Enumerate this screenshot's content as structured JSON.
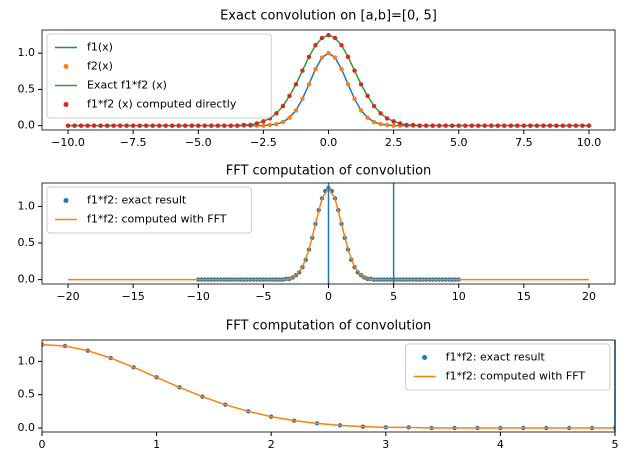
{
  "chart_data": [
    {
      "type": "line",
      "title": "Exact convolution on [a,b]=[0, 5]",
      "legend": "upper left",
      "x": [
        -10,
        -9.75,
        -9.5,
        -9.25,
        -9,
        -8.75,
        -8.5,
        -8.25,
        -8,
        -7.75,
        -7.5,
        -7.25,
        -7,
        -6.75,
        -6.5,
        -6.25,
        -6,
        -5.75,
        -5.5,
        -5.25,
        -5,
        -4.75,
        -4.5,
        -4.25,
        -4,
        -3.75,
        -3.5,
        -3.25,
        -3,
        -2.75,
        -2.5,
        -2.25,
        -2,
        -1.75,
        -1.5,
        -1.25,
        -1,
        -0.75,
        -0.5,
        -0.25,
        0,
        0.25,
        0.5,
        0.75,
        1,
        1.25,
        1.5,
        1.75,
        2,
        2.25,
        2.5,
        2.75,
        3,
        3.25,
        3.5,
        3.75,
        4,
        4.25,
        4.5,
        4.75,
        5,
        5.25,
        5.5,
        5.75,
        6,
        6.25,
        6.5,
        6.75,
        7,
        7.25,
        7.5,
        7.75,
        8,
        8.25,
        8.5,
        8.75,
        9,
        9.25,
        9.5,
        9.75,
        10
      ],
      "series": [
        {
          "name": "f1(x)",
          "color": "#1f77b4",
          "style": "line",
          "values": [
            0,
            0,
            0,
            0,
            0,
            0,
            0,
            0,
            0,
            0,
            0,
            0,
            0,
            0,
            0,
            0,
            0,
            0,
            0,
            0,
            0,
            0,
            0,
            0,
            0,
            0,
            0,
            0,
            0,
            0,
            0,
            0.01,
            0.02,
            0.05,
            0.11,
            0.21,
            0.37,
            0.57,
            0.78,
            0.94,
            1,
            0.94,
            0.78,
            0.57,
            0.37,
            0.21,
            0.11,
            0.05,
            0.02,
            0.01,
            0,
            0,
            0,
            0,
            0,
            0,
            0,
            0,
            0,
            0,
            0,
            0,
            0,
            0,
            0,
            0,
            0,
            0,
            0,
            0,
            0,
            0,
            0,
            0,
            0,
            0,
            0,
            0,
            0,
            0,
            0
          ]
        },
        {
          "name": "f2(x)",
          "color": "#ff7f0e",
          "style": "dots",
          "values": [
            0,
            0,
            0,
            0,
            0,
            0,
            0,
            0,
            0,
            0,
            0,
            0,
            0,
            0,
            0,
            0,
            0,
            0,
            0,
            0,
            0,
            0,
            0,
            0,
            0,
            0,
            0,
            0,
            0,
            0,
            0,
            0.01,
            0.02,
            0.05,
            0.11,
            0.21,
            0.37,
            0.57,
            0.78,
            0.94,
            1,
            0.94,
            0.78,
            0.57,
            0.37,
            0.21,
            0.11,
            0.05,
            0.02,
            0.01,
            0,
            0,
            0,
            0,
            0,
            0,
            0,
            0,
            0,
            0,
            0,
            0,
            0,
            0,
            0,
            0,
            0,
            0,
            0,
            0,
            0,
            0,
            0,
            0,
            0,
            0,
            0,
            0,
            0,
            0,
            0
          ]
        },
        {
          "name": "Exact f1*f2 (x)",
          "color": "#2ca02c",
          "style": "line",
          "values": [
            0,
            0,
            0,
            0,
            0,
            0,
            0,
            0,
            0,
            0,
            0,
            0,
            0,
            0,
            0,
            0,
            0,
            0,
            0,
            0,
            0,
            0,
            0,
            0,
            0,
            0,
            0,
            0.01,
            0.01,
            0.03,
            0.06,
            0.1,
            0.17,
            0.27,
            0.41,
            0.57,
            0.76,
            0.95,
            1.11,
            1.21,
            1.25,
            1.21,
            1.11,
            0.95,
            0.76,
            0.57,
            0.41,
            0.27,
            0.17,
            0.1,
            0.06,
            0.03,
            0.01,
            0.01,
            0,
            0,
            0,
            0,
            0,
            0,
            0,
            0,
            0,
            0,
            0,
            0,
            0,
            0,
            0,
            0,
            0,
            0,
            0,
            0,
            0,
            0,
            0,
            0,
            0,
            0,
            0
          ]
        },
        {
          "name": "f1*f2 (x) computed directly",
          "color": "#d62728",
          "style": "dots",
          "values": [
            0,
            0,
            0,
            0,
            0,
            0,
            0,
            0,
            0,
            0,
            0,
            0,
            0,
            0,
            0,
            0,
            0,
            0,
            0,
            0,
            0,
            0,
            0,
            0,
            0,
            0,
            0,
            0.01,
            0.01,
            0.03,
            0.06,
            0.1,
            0.17,
            0.27,
            0.41,
            0.57,
            0.76,
            0.95,
            1.11,
            1.21,
            1.25,
            1.21,
            1.11,
            0.95,
            0.76,
            0.57,
            0.41,
            0.27,
            0.17,
            0.1,
            0.06,
            0.03,
            0.01,
            0.01,
            0,
            0,
            0,
            0,
            0,
            0,
            0,
            0,
            0,
            0,
            0,
            0,
            0,
            0,
            0,
            0,
            0,
            0,
            0,
            0,
            0,
            0,
            0,
            0,
            0,
            0,
            0
          ]
        }
      ],
      "xlim": [
        -11,
        11
      ],
      "xticks": [
        {
          "value": -10,
          "label": "−10.0"
        },
        {
          "value": -7.5,
          "label": "−7.5"
        },
        {
          "value": -5,
          "label": "−5.0"
        },
        {
          "value": -2.5,
          "label": "−2.5"
        },
        {
          "value": 0,
          "label": "0.0"
        },
        {
          "value": 2.5,
          "label": "2.5"
        },
        {
          "value": 5,
          "label": "5.0"
        },
        {
          "value": 7.5,
          "label": "7.5"
        },
        {
          "value": 10,
          "label": "10.0"
        }
      ],
      "ylim": [
        -0.06,
        1.32
      ],
      "yticks": [
        {
          "value": 0,
          "label": "0.0"
        },
        {
          "value": 0.5,
          "label": "0.5"
        },
        {
          "value": 1,
          "label": "1.0"
        }
      ]
    },
    {
      "type": "line",
      "title": "FFT computation of convolution",
      "legend": "upper left",
      "vlines": [
        0,
        5
      ],
      "vline_color": "#1f77b4",
      "series": [
        {
          "name": "f1*f2: exact result",
          "color": "#1f77b4",
          "style": "dots",
          "x": [
            -10,
            -9.75,
            -9.5,
            -9.25,
            -9,
            -8.75,
            -8.5,
            -8.25,
            -8,
            -7.75,
            -7.5,
            -7.25,
            -7,
            -6.75,
            -6.5,
            -6.25,
            -6,
            -5.75,
            -5.5,
            -5.25,
            -5,
            -4.75,
            -4.5,
            -4.25,
            -4,
            -3.75,
            -3.5,
            -3.25,
            -3,
            -2.75,
            -2.5,
            -2.25,
            -2,
            -1.75,
            -1.5,
            -1.25,
            -1,
            -0.75,
            -0.5,
            -0.25,
            0,
            0.25,
            0.5,
            0.75,
            1,
            1.25,
            1.5,
            1.75,
            2,
            2.25,
            2.5,
            2.75,
            3,
            3.25,
            3.5,
            3.75,
            4,
            4.25,
            4.5,
            4.75,
            5,
            5.25,
            5.5,
            5.75,
            6,
            6.25,
            6.5,
            6.75,
            7,
            7.25,
            7.5,
            7.75,
            8,
            8.25,
            8.5,
            8.75,
            9,
            9.25,
            9.5,
            9.75,
            10
          ],
          "values": [
            0,
            0,
            0,
            0,
            0,
            0,
            0,
            0,
            0,
            0,
            0,
            0,
            0,
            0,
            0,
            0,
            0,
            0,
            0,
            0,
            0,
            0,
            0,
            0,
            0,
            0,
            0,
            0.01,
            0.01,
            0.03,
            0.06,
            0.1,
            0.17,
            0.27,
            0.41,
            0.57,
            0.76,
            0.95,
            1.11,
            1.21,
            1.25,
            1.21,
            1.11,
            0.95,
            0.76,
            0.57,
            0.41,
            0.27,
            0.17,
            0.1,
            0.06,
            0.03,
            0.01,
            0.01,
            0,
            0,
            0,
            0,
            0,
            0,
            0,
            0,
            0,
            0,
            0,
            0,
            0,
            0,
            0,
            0,
            0,
            0,
            0,
            0,
            0,
            0,
            0,
            0,
            0,
            0,
            0
          ]
        },
        {
          "name": "f1*f2: computed with FFT",
          "color": "#ff7f0e",
          "style": "line",
          "x": [
            -20,
            -19.5,
            -19,
            -18.5,
            -18,
            -17.5,
            -17,
            -16.5,
            -16,
            -15.5,
            -15,
            -14.5,
            -14,
            -13.5,
            -13,
            -12.5,
            -12,
            -11.5,
            -11,
            -10.5,
            -10,
            -9.5,
            -9,
            -8.5,
            -8,
            -7.5,
            -7,
            -6.5,
            -6,
            -5.5,
            -5,
            -4.5,
            -4,
            -3.5,
            -3,
            -2.5,
            -2,
            -1.5,
            -1,
            -0.5,
            0,
            0.5,
            1,
            1.5,
            2,
            2.5,
            3,
            3.5,
            4,
            4.5,
            5,
            5.5,
            6,
            6.5,
            7,
            7.5,
            8,
            8.5,
            9,
            9.5,
            10,
            10.5,
            11,
            11.5,
            12,
            12.5,
            13,
            13.5,
            14,
            14.5,
            15,
            15.5,
            16,
            16.5,
            17,
            17.5,
            18,
            18.5,
            19,
            19.5,
            20
          ],
          "values": [
            0,
            0,
            0,
            0,
            0,
            0,
            0,
            0,
            0,
            0,
            0,
            0,
            0,
            0,
            0,
            0,
            0,
            0,
            0,
            0,
            0,
            0,
            0,
            0,
            0,
            0,
            0,
            0,
            0,
            0,
            0,
            0,
            0,
            0,
            0.01,
            0.06,
            0.17,
            0.41,
            0.76,
            1.11,
            1.25,
            1.11,
            0.76,
            0.41,
            0.17,
            0.06,
            0.01,
            0,
            0,
            0,
            0,
            0,
            0,
            0,
            0,
            0,
            0,
            0,
            0,
            0,
            0,
            0,
            0,
            0,
            0,
            0,
            0,
            0,
            0,
            0,
            0,
            0,
            0,
            0,
            0,
            0,
            0,
            0,
            0,
            0,
            0
          ]
        }
      ],
      "xlim": [
        -22,
        22
      ],
      "xticks": [
        {
          "value": -20,
          "label": "−20"
        },
        {
          "value": -15,
          "label": "−15"
        },
        {
          "value": -10,
          "label": "−10"
        },
        {
          "value": -5,
          "label": "−5"
        },
        0,
        5,
        10,
        15,
        20
      ],
      "ylim": [
        -0.06,
        1.32
      ],
      "yticks": [
        {
          "value": 0,
          "label": "0.0"
        },
        {
          "value": 0.5,
          "label": "0.5"
        },
        {
          "value": 1,
          "label": "1.0"
        }
      ]
    },
    {
      "type": "line",
      "title": "FFT computation of convolution",
      "legend": "upper right",
      "vlines": [
        5
      ],
      "vline_color": "#1f77b4",
      "x": [
        0,
        0.2,
        0.4,
        0.6,
        0.8,
        1,
        1.2,
        1.4,
        1.6,
        1.8,
        2,
        2.2,
        2.4,
        2.6,
        2.8,
        3,
        3.2,
        3.4,
        3.6,
        3.8,
        4,
        4.2,
        4.4,
        4.6,
        4.8,
        5
      ],
      "series": [
        {
          "name": "f1*f2: exact result",
          "color": "#1f77b4",
          "style": "dots",
          "values": [
            1.25,
            1.23,
            1.16,
            1.05,
            0.91,
            0.76,
            0.61,
            0.47,
            0.35,
            0.25,
            0.17,
            0.11,
            0.07,
            0.04,
            0.02,
            0.01,
            0.01,
            0,
            0,
            0,
            0,
            0,
            0,
            0,
            0,
            0
          ]
        },
        {
          "name": "f1*f2: computed with FFT",
          "color": "#ff7f0e",
          "style": "line",
          "values": [
            1.25,
            1.23,
            1.16,
            1.05,
            0.91,
            0.76,
            0.61,
            0.47,
            0.35,
            0.25,
            0.17,
            0.11,
            0.07,
            0.04,
            0.02,
            0.01,
            0.01,
            0,
            0,
            0,
            0,
            0,
            0,
            0,
            0,
            0
          ]
        }
      ],
      "xlim": [
        0,
        5
      ],
      "xticks": [
        0,
        1,
        2,
        3,
        4,
        5
      ],
      "ylim": [
        -0.06,
        1.32
      ],
      "yticks": [
        {
          "value": 0,
          "label": "0.0"
        },
        {
          "value": 0.5,
          "label": "0.5"
        },
        {
          "value": 1,
          "label": "1.0"
        }
      ]
    }
  ]
}
